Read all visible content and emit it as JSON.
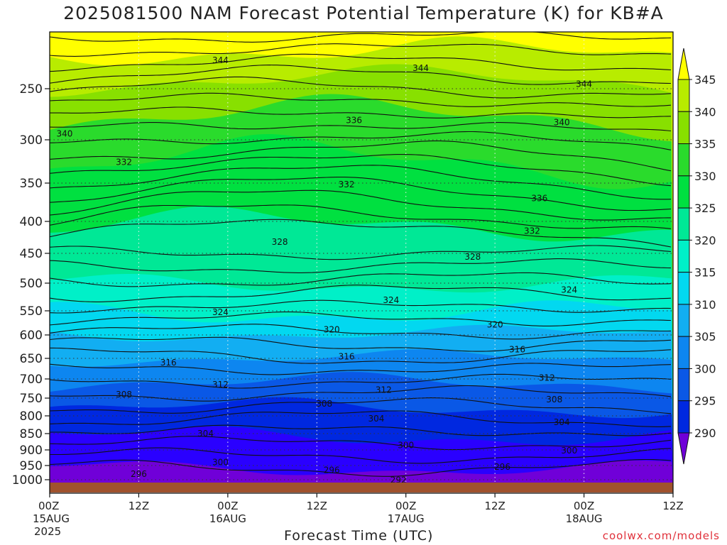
{
  "title": "2025081500 NAM Forecast Potential Temperature (K) for KB#A",
  "x_axis_title": "Forecast Time (UTC)",
  "credit": "coolwx.com/models",
  "colors": {
    "ground": "#a0522d",
    "bands": [
      "#7000d8",
      "#2a00ff",
      "#0028e0",
      "#0a58e6",
      "#0d86f0",
      "#12aef2",
      "#02d8f0",
      "#00f0c8",
      "#00e896",
      "#00e040",
      "#2adb2c",
      "#88e000",
      "#b8ec00",
      "#ffff00"
    ]
  },
  "chart_data": {
    "type": "heatmap",
    "title": "2025081500 NAM Forecast Potential Temperature (K) for KB#A",
    "xlabel": "Forecast Time (UTC)",
    "ylabel": "",
    "x_ticks": [
      {
        "hour": 0,
        "label": "00Z",
        "sub": "15AUG",
        "sub2": "2025"
      },
      {
        "hour": 12,
        "label": "12Z",
        "sub": "",
        "sub2": ""
      },
      {
        "hour": 24,
        "label": "00Z",
        "sub": "16AUG",
        "sub2": ""
      },
      {
        "hour": 36,
        "label": "12Z",
        "sub": "",
        "sub2": ""
      },
      {
        "hour": 48,
        "label": "00Z",
        "sub": "17AUG",
        "sub2": ""
      },
      {
        "hour": 60,
        "label": "12Z",
        "sub": "",
        "sub2": ""
      },
      {
        "hour": 72,
        "label": "00Z",
        "sub": "18AUG",
        "sub2": ""
      },
      {
        "hour": 84,
        "label": "12Z",
        "sub": "",
        "sub2": ""
      }
    ],
    "xlim": [
      0,
      84
    ],
    "y_ticks": [
      250,
      300,
      350,
      400,
      450,
      500,
      550,
      600,
      650,
      700,
      750,
      800,
      850,
      900,
      950,
      1000
    ],
    "ylim": [
      200,
      1020
    ],
    "colorbar": {
      "levels": [
        290,
        295,
        300,
        305,
        310,
        315,
        320,
        325,
        330,
        335,
        340,
        345
      ],
      "labels": [
        "290",
        "295",
        "300",
        "305",
        "310",
        "315",
        "320",
        "325",
        "330",
        "335",
        "340",
        "345"
      ]
    },
    "contour_labels": [
      {
        "value": "344",
        "hour": 23,
        "p": 225
      },
      {
        "value": "344",
        "hour": 50,
        "p": 232
      },
      {
        "value": "344",
        "hour": 72,
        "p": 246
      },
      {
        "value": "340",
        "hour": 2,
        "p": 294
      },
      {
        "value": "340",
        "hour": 69,
        "p": 283
      },
      {
        "value": "336",
        "hour": 41,
        "p": 281
      },
      {
        "value": "336",
        "hour": 66,
        "p": 370
      },
      {
        "value": "332",
        "hour": 10,
        "p": 326
      },
      {
        "value": "332",
        "hour": 40,
        "p": 352
      },
      {
        "value": "332",
        "hour": 65,
        "p": 415
      },
      {
        "value": "328",
        "hour": 31,
        "p": 432
      },
      {
        "value": "328",
        "hour": 57,
        "p": 456
      },
      {
        "value": "324",
        "hour": 23,
        "p": 553
      },
      {
        "value": "324",
        "hour": 46,
        "p": 531
      },
      {
        "value": "324",
        "hour": 70,
        "p": 512
      },
      {
        "value": "320",
        "hour": 38,
        "p": 589
      },
      {
        "value": "320",
        "hour": 60,
        "p": 579
      },
      {
        "value": "316",
        "hour": 16,
        "p": 660
      },
      {
        "value": "316",
        "hour": 40,
        "p": 646
      },
      {
        "value": "316",
        "hour": 63,
        "p": 631
      },
      {
        "value": "312",
        "hour": 23,
        "p": 715
      },
      {
        "value": "312",
        "hour": 45,
        "p": 729
      },
      {
        "value": "312",
        "hour": 67,
        "p": 697
      },
      {
        "value": "308",
        "hour": 10,
        "p": 741
      },
      {
        "value": "308",
        "hour": 37,
        "p": 766
      },
      {
        "value": "308",
        "hour": 68,
        "p": 754
      },
      {
        "value": "304",
        "hour": 21,
        "p": 850
      },
      {
        "value": "304",
        "hour": 44,
        "p": 808
      },
      {
        "value": "304",
        "hour": 69,
        "p": 818
      },
      {
        "value": "300",
        "hour": 48,
        "p": 886
      },
      {
        "value": "300",
        "hour": 70,
        "p": 902
      },
      {
        "value": "300",
        "hour": 23,
        "p": 940
      },
      {
        "value": "296",
        "hour": 12,
        "p": 980
      },
      {
        "value": "296",
        "hour": 38,
        "p": 966
      },
      {
        "value": "296",
        "hour": 61,
        "p": 955
      },
      {
        "value": "292",
        "hour": 47,
        "p": 1001
      }
    ]
  }
}
